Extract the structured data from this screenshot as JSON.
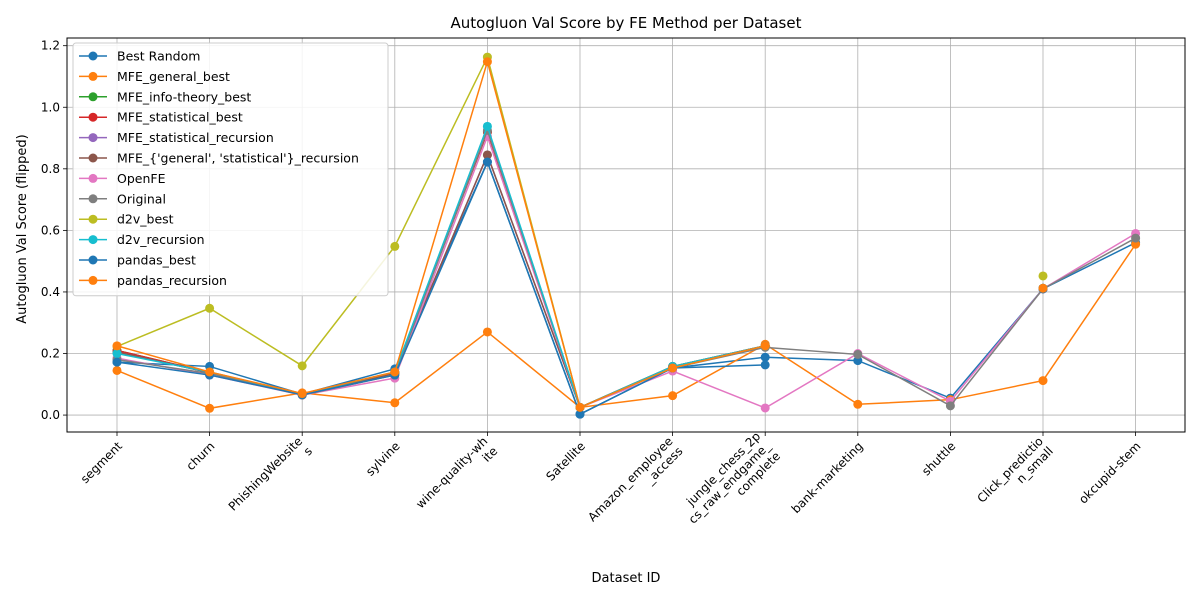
{
  "chart_data": {
    "type": "line",
    "title": "Autogluon Val Score by FE Method per Dataset",
    "xlabel": "Dataset ID",
    "ylabel": "Autogluon Val Score (flipped)",
    "ylim": [
      -0.055,
      1.225
    ],
    "yticks": [
      "0.0",
      "0.2",
      "0.4",
      "0.6",
      "0.8",
      "1.0",
      "1.2"
    ],
    "ytick_values": [
      0,
      0.2,
      0.4,
      0.6,
      0.8,
      1.0,
      1.2
    ],
    "grid": true,
    "legend_position": "upper-left",
    "categories": [
      "segment",
      "churn",
      "PhishingWebsites",
      "sylvine",
      "wine-quality-white",
      "Satellite",
      "Amazon_employee_access",
      "jungle_chess_2pcs_raw_endgame_complete",
      "bank-marketing",
      "shuttle",
      "Click_prediction_small",
      "okcupid-stem"
    ],
    "category_labels": [
      [
        "segment"
      ],
      [
        "churn"
      ],
      [
        "PhishingWebsite",
        "s"
      ],
      [
        "sylvine"
      ],
      [
        "wine-quality-wh",
        "ite"
      ],
      [
        "Satellite"
      ],
      [
        "Amazon_employee",
        "_access"
      ],
      [
        "jungle_chess_2p",
        "cs_raw_endgame_",
        "complete"
      ],
      [
        "bank-marketing"
      ],
      [
        "shuttle"
      ],
      [
        "Click_predictio",
        "n_small"
      ],
      [
        "okcupid-stem"
      ]
    ],
    "series": [
      {
        "name": "Best Random",
        "color": "#1f77b4",
        "values": [
          0.172,
          0.158,
          0.068,
          0.15,
          0.822,
          0.003,
          0.153,
          0.188,
          0.177,
          0.055,
          0.41,
          0.56
        ]
      },
      {
        "name": "MFE_general_best",
        "color": "#ff7f0e",
        "values": [
          0.145,
          0.022,
          0.072,
          0.04,
          0.27,
          0.025,
          0.063,
          0.23,
          0.035,
          0.05,
          0.112,
          0.555
        ]
      },
      {
        "name": "MFE_info-theory_best",
        "color": "#2ca02c",
        "values": [
          0.21,
          0.138,
          0.068,
          0.138,
          0.92,
          0.025,
          0.158,
          0.225,
          null,
          null,
          0.412,
          null
        ]
      },
      {
        "name": "MFE_statistical_best",
        "color": "#d62728",
        "values": [
          0.21,
          0.138,
          0.068,
          0.138,
          0.92,
          0.025,
          0.158,
          0.225,
          null,
          null,
          0.412,
          null
        ]
      },
      {
        "name": "MFE_statistical_recursion",
        "color": "#9467bd",
        "values": [
          0.205,
          0.138,
          0.068,
          0.135,
          0.845,
          0.025,
          0.153,
          0.225,
          null,
          null,
          0.41,
          null
        ]
      },
      {
        "name": "MFE_{'general', 'statistical'}_recursion",
        "color": "#8c564b",
        "values": [
          0.205,
          0.138,
          0.068,
          0.135,
          0.845,
          0.025,
          0.153,
          0.225,
          null,
          null,
          0.41,
          null
        ]
      },
      {
        "name": "OpenFE",
        "color": "#e377c2",
        "values": [
          0.185,
          0.13,
          0.065,
          0.12,
          0.905,
          0.025,
          0.143,
          0.023,
          0.2,
          0.045,
          0.41,
          0.59
        ]
      },
      {
        "name": "Original",
        "color": "#7f7f7f",
        "values": [
          0.18,
          0.135,
          0.065,
          0.13,
          0.925,
          0.025,
          0.153,
          0.22,
          0.197,
          0.03,
          0.41,
          0.575
        ]
      },
      {
        "name": "d2v_best",
        "color": "#bcbd22",
        "values": [
          0.223,
          0.347,
          0.16,
          0.548,
          1.163,
          0.025,
          0.153,
          0.225,
          null,
          null,
          0.452,
          null
        ]
      },
      {
        "name": "d2v_recursion",
        "color": "#17becf",
        "values": [
          0.2,
          0.14,
          0.068,
          0.14,
          0.938,
          0.025,
          0.158,
          0.225,
          null,
          null,
          0.412,
          null
        ]
      },
      {
        "name": "pandas_best",
        "color": "#1f77b4",
        "values": [
          0.172,
          0.13,
          0.066,
          0.13,
          0.822,
          0.003,
          0.153,
          0.163,
          null,
          null,
          0.41,
          null
        ]
      },
      {
        "name": "pandas_recursion",
        "color": "#ff7f0e",
        "values": [
          0.225,
          0.14,
          0.07,
          0.14,
          1.148,
          0.025,
          0.153,
          0.225,
          null,
          null,
          0.412,
          null
        ]
      }
    ]
  }
}
